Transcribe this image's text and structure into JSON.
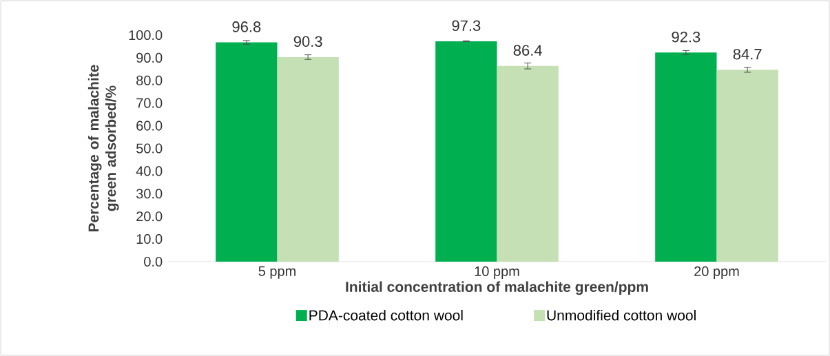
{
  "chart_data": {
    "type": "bar",
    "xlabel": "Initial concentration of malachite green/ppm",
    "ylabel": "Percentage of malachite green adsorbed/%",
    "categories": [
      "5 ppm",
      "10 ppm",
      "20 ppm"
    ],
    "series": [
      {
        "name": "PDA-coated cotton wool",
        "color": "#00b050",
        "values": [
          96.8,
          97.3,
          92.3
        ],
        "errors": [
          0.8,
          0.2,
          0.9
        ]
      },
      {
        "name": "Unmodified cotton wool",
        "color": "#c5e0b4",
        "values": [
          90.3,
          86.4,
          84.7
        ],
        "errors": [
          1.0,
          1.3,
          1.1
        ]
      }
    ],
    "ylim": [
      0,
      100
    ],
    "yticks": [
      {
        "value": 0,
        "label": "0.0"
      },
      {
        "value": 10,
        "label": "10.0"
      },
      {
        "value": 20,
        "label": "20.0"
      },
      {
        "value": 30,
        "label": "30.0"
      },
      {
        "value": 40,
        "label": "40.0"
      },
      {
        "value": 50,
        "label": "50.0"
      },
      {
        "value": 60,
        "label": "60.0"
      },
      {
        "value": 70,
        "label": "70.0"
      },
      {
        "value": 80,
        "label": "80.0"
      },
      {
        "value": 90,
        "label": "90.0"
      },
      {
        "value": 100,
        "label": "100.0"
      }
    ],
    "data_labels": true,
    "legend": "bottom"
  }
}
